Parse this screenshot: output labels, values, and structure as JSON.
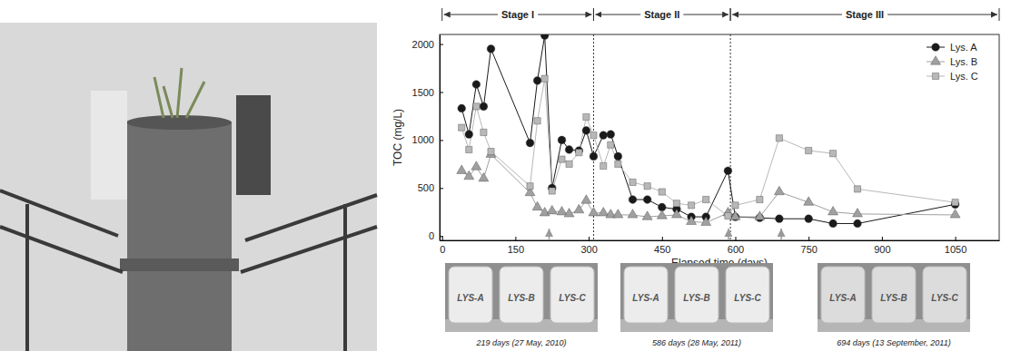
{
  "chart_data": {
    "type": "line",
    "x_label": "Elapsed time (days)",
    "y_label": "TOC (mg/L)",
    "x": [
      40,
      55,
      70,
      85,
      100,
      180,
      195,
      210,
      225,
      245,
      260,
      280,
      295,
      310,
      330,
      345,
      360,
      390,
      420,
      450,
      480,
      510,
      540,
      585,
      600,
      650,
      690,
      750,
      800,
      850,
      1050
    ],
    "series": [
      {
        "name": "Lys. A",
        "color": "#1a1a1a",
        "marker": "circle",
        "values": [
          1330,
          1060,
          1580,
          1350,
          1950,
          970,
          1620,
          2090,
          500,
          1000,
          900,
          890,
          1100,
          830,
          1050,
          1060,
          830,
          380,
          380,
          300,
          280,
          200,
          200,
          680,
          200,
          190,
          180,
          180,
          130,
          130,
          330
        ]
      },
      {
        "name": "Lys. B",
        "color": "#a0a0a0",
        "marker": "triangle",
        "values": [
          680,
          620,
          720,
          600,
          850,
          450,
          300,
          240,
          260,
          250,
          230,
          270,
          370,
          240,
          240,
          220,
          220,
          220,
          200,
          210,
          220,
          150,
          140,
          240,
          200,
          200,
          460,
          350,
          250,
          230,
          220
        ]
      },
      {
        "name": "Lys. C",
        "color": "#b8b8b8",
        "marker": "square",
        "values": [
          1130,
          900,
          1350,
          1080,
          880,
          520,
          1200,
          1640,
          470,
          800,
          750,
          870,
          1240,
          1050,
          730,
          950,
          750,
          560,
          520,
          460,
          340,
          320,
          380,
          210,
          320,
          380,
          1020,
          890,
          860,
          490,
          350
        ]
      }
    ],
    "xlim": [
      -5,
      1140
    ],
    "ylim": [
      -45,
      2100
    ],
    "xticks": [
      0,
      150,
      300,
      450,
      600,
      750,
      900,
      1050
    ],
    "yticks": [
      0,
      500,
      1000,
      1500,
      2000
    ],
    "legend": "top-right",
    "grid": false,
    "stages": [
      {
        "label": "Stage I",
        "start": 0,
        "end": 310
      },
      {
        "label": "Stage II",
        "start": 310,
        "end": 590
      },
      {
        "label": "Stage III",
        "start": 590,
        "end": 1140
      }
    ],
    "photos": [
      {
        "day": 219,
        "caption": "219 days (27 May, 2010)",
        "labels": [
          "LYS-A",
          "LYS-B",
          "LYS-C"
        ]
      },
      {
        "day": 586,
        "caption": "586 days (28 May, 2011)",
        "labels": [
          "LYS-A",
          "LYS-B",
          "LYS-C"
        ]
      },
      {
        "day": 694,
        "caption": "694 days (13 September, 2011)",
        "labels": [
          "LYS-A",
          "LYS-B",
          "LYS-C"
        ]
      }
    ]
  }
}
